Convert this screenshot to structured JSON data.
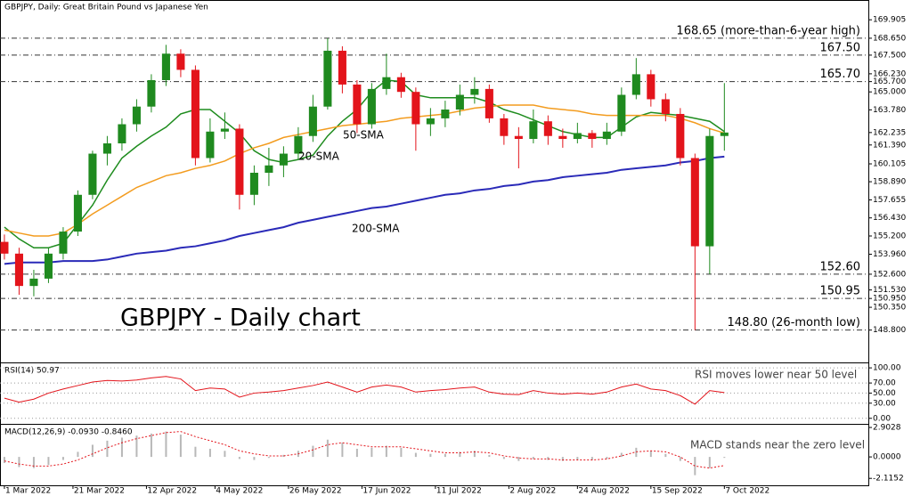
{
  "chart_data": [
    {
      "type": "candlestick",
      "title": "GBPJPY, Daily:  Great Britain Pound vs Japanese Yen",
      "subtitle": "GBPJPY - Daily chart",
      "up_color": "#1f8a1f",
      "down_color": "#e3141b",
      "x": [
        0,
        3,
        6,
        9,
        12,
        15,
        18,
        21,
        24,
        27,
        30,
        33,
        36,
        39,
        42,
        45,
        48,
        51,
        54,
        57,
        60,
        63,
        66,
        69,
        72,
        75,
        78,
        81,
        84,
        87,
        90,
        93,
        96,
        99,
        102,
        105,
        108,
        111,
        114,
        117,
        120,
        123,
        126,
        129,
        132,
        135,
        138,
        141,
        144,
        147
      ],
      "candles": [
        [
          154.8,
          155.3,
          153.6,
          154.0
        ],
        [
          154.0,
          154.4,
          151.2,
          151.8
        ],
        [
          151.8,
          152.9,
          151.1,
          152.3
        ],
        [
          152.3,
          154.4,
          152.0,
          154.0
        ],
        [
          154.0,
          155.8,
          153.6,
          155.5
        ],
        [
          155.5,
          158.3,
          155.2,
          158.0
        ],
        [
          158.0,
          161.0,
          157.7,
          160.8
        ],
        [
          160.8,
          162.0,
          160.0,
          161.5
        ],
        [
          161.5,
          163.2,
          161.0,
          162.8
        ],
        [
          162.8,
          164.5,
          162.3,
          164.0
        ],
        [
          164.0,
          166.2,
          163.6,
          165.8
        ],
        [
          165.8,
          168.2,
          165.4,
          167.6
        ],
        [
          167.6,
          167.9,
          166.0,
          166.5
        ],
        [
          166.5,
          166.8,
          160.0,
          160.5
        ],
        [
          160.5,
          163.2,
          160.2,
          162.3
        ],
        [
          162.3,
          163.6,
          161.8,
          162.5
        ],
        [
          162.5,
          162.8,
          157.0,
          158.0
        ],
        [
          158.0,
          160.0,
          157.3,
          159.5
        ],
        [
          159.5,
          161.2,
          158.6,
          160.0
        ],
        [
          160.0,
          161.3,
          159.2,
          160.8
        ],
        [
          160.8,
          162.6,
          160.4,
          162.0
        ],
        [
          162.0,
          164.8,
          161.6,
          164.0
        ],
        [
          164.0,
          168.65,
          163.8,
          167.8
        ],
        [
          167.8,
          168.1,
          164.9,
          165.5
        ],
        [
          165.5,
          165.8,
          162.2,
          162.8
        ],
        [
          162.8,
          165.6,
          162.5,
          165.2
        ],
        [
          165.2,
          167.6,
          164.8,
          166.0
        ],
        [
          166.0,
          166.3,
          164.6,
          165.0
        ],
        [
          165.0,
          165.3,
          161.0,
          162.8
        ],
        [
          162.8,
          163.9,
          162.0,
          163.2
        ],
        [
          163.2,
          164.4,
          162.6,
          163.8
        ],
        [
          163.8,
          165.5,
          163.4,
          164.8
        ],
        [
          164.8,
          166.0,
          164.2,
          165.2
        ],
        [
          165.2,
          165.5,
          162.9,
          163.2
        ],
        [
          163.2,
          163.5,
          161.4,
          162.0
        ],
        [
          162.0,
          162.6,
          159.8,
          161.8
        ],
        [
          161.8,
          163.8,
          161.5,
          163.0
        ],
        [
          163.0,
          163.4,
          161.4,
          162.0
        ],
        [
          162.0,
          162.5,
          161.2,
          161.8
        ],
        [
          161.8,
          162.9,
          161.5,
          162.2
        ],
        [
          162.2,
          162.4,
          161.2,
          161.8
        ],
        [
          161.8,
          162.9,
          161.4,
          162.3
        ],
        [
          162.3,
          165.3,
          162.0,
          164.8
        ],
        [
          164.8,
          167.3,
          164.5,
          166.2
        ],
        [
          166.2,
          166.5,
          164.0,
          164.5
        ],
        [
          164.5,
          164.9,
          163.0,
          163.5
        ],
        [
          163.5,
          163.9,
          160.0,
          160.5
        ],
        [
          160.5,
          160.8,
          148.8,
          154.5
        ],
        [
          154.5,
          162.5,
          152.6,
          162.0
        ],
        [
          162.0,
          165.6,
          161.0,
          162.235
        ]
      ],
      "lines": [
        {
          "name": "20-SMA",
          "color": "#1e8c1e",
          "values": [
            155.8,
            155.0,
            154.4,
            154.4,
            154.7,
            156.0,
            157.3,
            159.0,
            160.5,
            161.3,
            162.0,
            162.6,
            163.5,
            163.8,
            163.8,
            163.0,
            162.2,
            161.0,
            160.4,
            160.2,
            160.4,
            160.7,
            162.0,
            163.0,
            163.8,
            165.0,
            165.8,
            165.7,
            164.8,
            164.6,
            164.6,
            164.6,
            164.6,
            164.3,
            163.8,
            163.5,
            163.1,
            162.7,
            162.3,
            162.1,
            161.9,
            161.9,
            162.6,
            163.3,
            163.6,
            163.5,
            163.4,
            163.2,
            163.0,
            162.3
          ]
        },
        {
          "name": "50-SMA",
          "color": "#f39c1f",
          "values": [
            155.6,
            155.4,
            155.2,
            155.2,
            155.4,
            156.0,
            156.7,
            157.3,
            157.9,
            158.5,
            158.9,
            159.3,
            159.5,
            159.8,
            160.0,
            160.3,
            160.8,
            161.2,
            161.5,
            161.9,
            162.1,
            162.3,
            162.5,
            162.7,
            162.8,
            162.9,
            163.0,
            163.2,
            163.3,
            163.4,
            163.5,
            163.7,
            163.9,
            164.0,
            164.1,
            164.1,
            164.1,
            163.9,
            163.8,
            163.7,
            163.5,
            163.4,
            163.4,
            163.4,
            163.4,
            163.4,
            163.2,
            162.9,
            162.5,
            162.2
          ]
        },
        {
          "name": "200-SMA",
          "color": "#2a2ab8",
          "values": [
            153.3,
            153.4,
            153.4,
            153.4,
            153.5,
            153.5,
            153.5,
            153.6,
            153.8,
            154.0,
            154.1,
            154.2,
            154.4,
            154.5,
            154.7,
            154.9,
            155.2,
            155.4,
            155.6,
            155.8,
            156.1,
            156.3,
            156.5,
            156.7,
            156.9,
            157.1,
            157.2,
            157.4,
            157.6,
            157.8,
            158.0,
            158.1,
            158.3,
            158.4,
            158.6,
            158.7,
            158.9,
            159.0,
            159.2,
            159.3,
            159.4,
            159.5,
            159.7,
            159.8,
            159.9,
            160.0,
            160.2,
            160.3,
            160.5,
            160.6
          ]
        }
      ],
      "levels": [
        {
          "value": 168.65,
          "label": "168.65 (more-than-6-year high)",
          "color": "#e8232a"
        },
        {
          "value": 167.5,
          "label": "167.50",
          "color": "#e8232a"
        },
        {
          "value": 165.7,
          "label": "165.70",
          "color": "#e8232a"
        },
        {
          "value": 152.6,
          "label": "152.60",
          "color": "#2f9a2f"
        },
        {
          "value": 150.95,
          "label": "150.95",
          "color": "#2f9a2f"
        },
        {
          "value": 148.8,
          "label": "148.80 (26-month low)",
          "color": "#2f9a2f"
        }
      ],
      "xlim": [
        -0.9,
        176.4
      ],
      "ylim": [
        146.6,
        171.25
      ],
      "yticks": [
        {
          "value": 169.905,
          "label": "169.905"
        },
        {
          "value": 168.65,
          "label": "168.650"
        },
        {
          "value": 167.5,
          "label": "167.500"
        },
        {
          "value": 166.23,
          "label": "166.230"
        },
        {
          "value": 165.7,
          "label": "165.700"
        },
        {
          "value": 165.0,
          "label": "165.000"
        },
        {
          "value": 163.78,
          "label": "163.780"
        },
        {
          "value": 162.235,
          "label": "162.235"
        },
        {
          "value": 161.39,
          "label": "161.390"
        },
        {
          "value": 160.105,
          "label": "160.105"
        },
        {
          "value": 158.89,
          "label": "158.890"
        },
        {
          "value": 157.655,
          "label": "157.655"
        },
        {
          "value": 156.43,
          "label": "156.430"
        },
        {
          "value": 155.2,
          "label": "155.200"
        },
        {
          "value": 153.96,
          "label": "153.960"
        },
        {
          "value": 152.6,
          "label": "152.600"
        },
        {
          "value": 151.53,
          "label": "151.530"
        },
        {
          "value": 150.95,
          "label": "150.950"
        },
        {
          "value": 150.35,
          "label": "150.350"
        },
        {
          "value": 148.8,
          "label": "148.800"
        }
      ],
      "xticks": [
        {
          "value": 0,
          "label": "1 Mar 2022"
        },
        {
          "value": 14,
          "label": "21 Mar 2022"
        },
        {
          "value": 29,
          "label": "12 Apr 2022"
        },
        {
          "value": 43,
          "label": "4 May 2022"
        },
        {
          "value": 58,
          "label": "26 May 2022"
        },
        {
          "value": 73,
          "label": "17 Jun 2022"
        },
        {
          "value": 88,
          "label": "11 Jul 2022"
        },
        {
          "value": 103,
          "label": "2 Aug 2022"
        },
        {
          "value": 117,
          "label": "24 Aug 2022"
        },
        {
          "value": 132,
          "label": "15 Sep 2022"
        },
        {
          "value": 147,
          "label": "7 Oct 2022"
        }
      ]
    },
    {
      "type": "line",
      "title": "RSI(14) 50.97",
      "annotation": "RSI moves lower near 50 level",
      "x": [
        0,
        3,
        6,
        9,
        12,
        15,
        18,
        21,
        24,
        27,
        30,
        33,
        36,
        39,
        42,
        45,
        48,
        51,
        54,
        57,
        60,
        63,
        66,
        69,
        72,
        75,
        78,
        81,
        84,
        87,
        90,
        93,
        96,
        99,
        102,
        105,
        108,
        111,
        114,
        117,
        120,
        123,
        126,
        129,
        132,
        135,
        138,
        141,
        144,
        147
      ],
      "series": [
        {
          "color": "#e3141b",
          "values": [
            40,
            32,
            38,
            50,
            58,
            65,
            72,
            75,
            74,
            76,
            80,
            83,
            78,
            55,
            60,
            58,
            42,
            50,
            52,
            55,
            60,
            65,
            72,
            62,
            52,
            62,
            66,
            62,
            52,
            55,
            57,
            60,
            62,
            52,
            48,
            47,
            55,
            50,
            48,
            50,
            48,
            52,
            62,
            68,
            58,
            55,
            45,
            28,
            55,
            50.97
          ]
        }
      ],
      "ylim": [
        -11,
        109
      ],
      "yticks": [
        {
          "value": 100,
          "label": "100.00"
        },
        {
          "value": 70,
          "label": "70.00"
        },
        {
          "value": 50,
          "label": "50.00"
        },
        {
          "value": 30,
          "label": "30.00"
        },
        {
          "value": 0,
          "label": "0.00"
        }
      ],
      "grid": true
    },
    {
      "type": "bar",
      "title": "MACD(12,26,9) -0.0930 -0.8460",
      "annotation": "MACD stands near the zero level",
      "x": [
        0,
        3,
        6,
        9,
        12,
        15,
        18,
        21,
        24,
        27,
        30,
        33,
        36,
        39,
        42,
        45,
        48,
        51,
        54,
        57,
        60,
        63,
        66,
        69,
        72,
        75,
        78,
        81,
        84,
        87,
        90,
        93,
        96,
        99,
        102,
        105,
        108,
        111,
        114,
        117,
        120,
        123,
        126,
        129,
        132,
        135,
        138,
        141,
        144,
        147
      ],
      "values": [
        -0.6,
        -1.0,
        -1.1,
        -0.8,
        -0.3,
        0.5,
        1.2,
        1.6,
        1.9,
        2.1,
        2.3,
        2.5,
        2.2,
        1.0,
        0.8,
        0.6,
        -0.2,
        -0.3,
        -0.1,
        0.2,
        0.6,
        1.1,
        1.7,
        1.4,
        0.8,
        0.9,
        1.1,
        0.9,
        0.4,
        0.3,
        0.3,
        0.5,
        0.6,
        0.2,
        -0.2,
        -0.4,
        -0.2,
        -0.3,
        -0.4,
        -0.3,
        -0.3,
        -0.2,
        0.4,
        0.9,
        0.6,
        0.3,
        -0.4,
        -1.8,
        -1.1,
        -0.093
      ],
      "color": "#b8b8b8",
      "signal": {
        "color": "#e3141b",
        "values": [
          -0.4,
          -0.7,
          -0.9,
          -0.9,
          -0.7,
          -0.3,
          0.3,
          0.9,
          1.4,
          1.8,
          2.1,
          2.4,
          2.5,
          2.0,
          1.6,
          1.2,
          0.6,
          0.3,
          0.1,
          0.1,
          0.3,
          0.7,
          1.2,
          1.4,
          1.2,
          1.0,
          1.0,
          1.0,
          0.8,
          0.6,
          0.4,
          0.4,
          0.5,
          0.4,
          0.1,
          -0.1,
          -0.2,
          -0.2,
          -0.3,
          -0.3,
          -0.3,
          -0.2,
          0.1,
          0.5,
          0.6,
          0.5,
          0.0,
          -0.9,
          -1.1,
          -0.846
        ]
      },
      "ylim": [
        -2.8,
        3.17
      ],
      "yticks": [
        {
          "value": 2.9028,
          "label": "2.9028"
        },
        {
          "value": 0,
          "label": "0.0000"
        },
        {
          "value": -2.1152,
          "label": "-2.1152"
        }
      ]
    }
  ]
}
